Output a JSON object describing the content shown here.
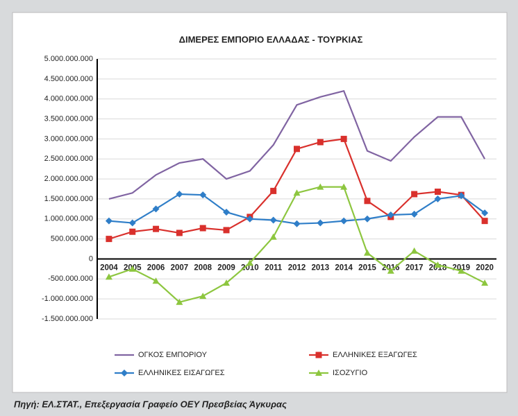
{
  "chart_data": {
    "type": "line",
    "title": "ΔΙΜΕΡΕΣ ΕΜΠΟΡΙΟ ΕΛΛΑΔΑΣ - ΤΟΥΡΚΙΑΣ",
    "categories": [
      "2004",
      "2005",
      "2006",
      "2007",
      "2008",
      "2009",
      "2010",
      "2011",
      "2012",
      "2013",
      "2014",
      "2015",
      "2016",
      "2017",
      "2018",
      "2019",
      "2020"
    ],
    "series": [
      {
        "name": "ΟΓΚΟΣ ΕΜΠΟΡΙΟΥ",
        "color": "#8064a2",
        "marker": "none",
        "values": [
          1500000000,
          1650000000,
          2100000000,
          2400000000,
          2500000000,
          2000000000,
          2200000000,
          2850000000,
          3850000000,
          4050000000,
          4200000000,
          2700000000,
          2450000000,
          3050000000,
          3550000000,
          3550000000,
          2500000000
        ]
      },
      {
        "name": "ΕΛΛΗΝΙΚΕΣ ΕΞΑΓΩΓΕΣ",
        "color": "#d9302c",
        "marker": "square",
        "values": [
          500000000,
          680000000,
          750000000,
          650000000,
          770000000,
          720000000,
          1050000000,
          1700000000,
          2750000000,
          2920000000,
          3000000000,
          1450000000,
          1050000000,
          1620000000,
          1680000000,
          1600000000,
          950000000
        ]
      },
      {
        "name": "ΕΛΛΗΝΙΚΕΣ ΕΙΣΑΓΩΓΕΣ",
        "color": "#2f7ec8",
        "marker": "diamond",
        "values": [
          950000000,
          900000000,
          1250000000,
          1620000000,
          1600000000,
          1170000000,
          1000000000,
          970000000,
          880000000,
          900000000,
          950000000,
          1000000000,
          1100000000,
          1120000000,
          1500000000,
          1580000000,
          1150000000
        ]
      },
      {
        "name": "ΙΣΟΖΥΓΙΟ",
        "color": "#8dc63f",
        "marker": "triangle",
        "values": [
          -450000000,
          -250000000,
          -550000000,
          -1080000000,
          -930000000,
          -600000000,
          -100000000,
          550000000,
          1650000000,
          1800000000,
          1800000000,
          150000000,
          -300000000,
          200000000,
          -150000000,
          -300000000,
          -600000000
        ]
      }
    ],
    "ylim": [
      -1500000000,
      5000000000
    ],
    "yticks": [
      {
        "value": -1500000000,
        "label": "-1.500.000.000"
      },
      {
        "value": -1000000000,
        "label": "-1.000.000.000"
      },
      {
        "value": -500000000,
        "label": "-500.000.000"
      },
      0,
      {
        "value": 500000000,
        "label": "500.000.000"
      },
      {
        "value": 1000000000,
        "label": "1.000.000.000"
      },
      {
        "value": 1500000000,
        "label": "1.500.000.000"
      },
      {
        "value": 2000000000,
        "label": "2.000.000.000"
      },
      {
        "value": 2500000000,
        "label": "2.500.000.000"
      },
      {
        "value": 3000000000,
        "label": "3.000.000.000"
      },
      {
        "value": 3500000000,
        "label": "3.500.000.000"
      },
      {
        "value": 4000000000,
        "label": "4.000.000.000"
      },
      {
        "value": 4500000000,
        "label": "4.500.000.000"
      },
      {
        "value": 5000000000,
        "label": "5.000.000.000"
      }
    ],
    "grid": true,
    "source": "Πηγή: ΕΛ.ΣΤΑΤ., Επεξεργασία Γραφείο ΟΕΥ Πρεσβείας Άγκυρας"
  }
}
